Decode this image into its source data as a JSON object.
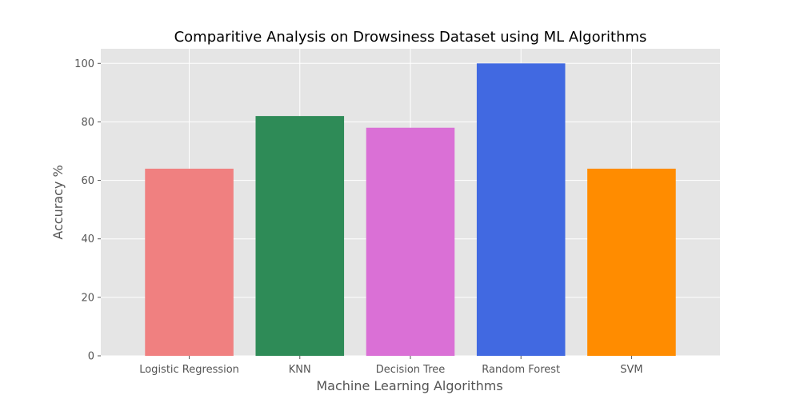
{
  "chart_data": {
    "type": "bar",
    "title": "Comparitive Analysis on Drowsiness Dataset using ML Algorithms",
    "xlabel": "Machine Learning Algorithms",
    "ylabel": "Accuracy %",
    "categories": [
      "Logistic Regression",
      "KNN",
      "Decision Tree",
      "Random Forest",
      "SVM"
    ],
    "values": [
      64,
      82,
      78,
      100,
      64
    ],
    "colors": [
      "#f08080",
      "#2e8b57",
      "#da70d6",
      "#4169e1",
      "#ff8c00"
    ],
    "ylim": [
      0,
      105
    ],
    "yticks": [
      0,
      20,
      40,
      60,
      80,
      100
    ],
    "grid": true,
    "background": "#e5e5e5"
  }
}
